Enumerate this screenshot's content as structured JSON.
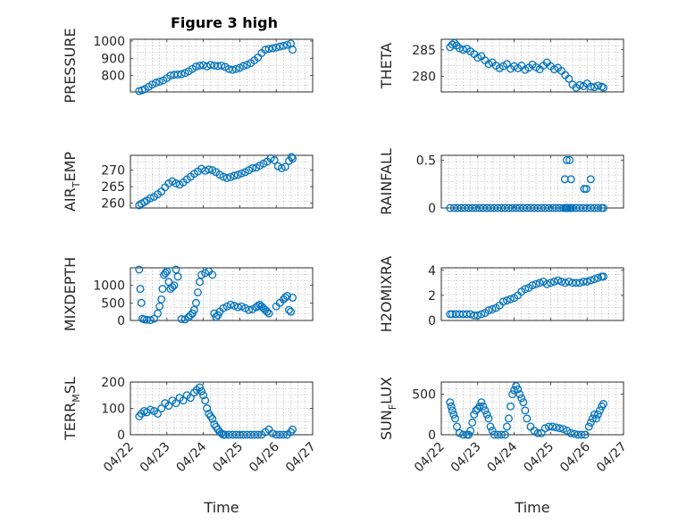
{
  "figure": {
    "title": "Figure 3 high",
    "marker_color": "#0072BD"
  },
  "chart_data": [
    {
      "type": "scatter",
      "id": "pressure",
      "ylabel": "PRESSURE",
      "xlabel": "",
      "xlim": [
        0,
        5
      ],
      "ylim": [
        705,
        1010
      ],
      "yticks": [
        800,
        900,
        1000
      ],
      "ytick_labels": [
        "800",
        "900",
        "1000"
      ],
      "xticks": [
        0,
        1,
        2,
        3,
        4,
        5
      ],
      "xtick_labels": [],
      "grid": true,
      "x": [
        0.24,
        0.32,
        0.4,
        0.5,
        0.6,
        0.7,
        0.8,
        0.9,
        1.0,
        1.1,
        1.2,
        1.3,
        1.4,
        1.5,
        1.6,
        1.7,
        1.8,
        1.9,
        2.0,
        2.1,
        2.2,
        2.3,
        2.4,
        2.5,
        2.6,
        2.7,
        2.8,
        2.9,
        3.0,
        3.1,
        3.2,
        3.3,
        3.4,
        3.5,
        3.6,
        3.7,
        3.8,
        3.9,
        4.0,
        4.1,
        4.2,
        4.3,
        4.4,
        4.45
      ],
      "y": [
        710,
        715,
        722,
        735,
        748,
        758,
        765,
        772,
        785,
        800,
        805,
        806,
        808,
        815,
        825,
        838,
        852,
        858,
        860,
        853,
        862,
        858,
        855,
        858,
        850,
        838,
        833,
        838,
        845,
        855,
        862,
        872,
        888,
        905,
        930,
        950,
        955,
        958,
        962,
        968,
        972,
        978,
        985,
        950
      ]
    },
    {
      "type": "scatter",
      "id": "theta",
      "ylabel": "THETA",
      "xlabel": "",
      "xlim": [
        0,
        5
      ],
      "ylim": [
        277,
        287
      ],
      "yticks": [
        280,
        285
      ],
      "ytick_labels": [
        "280",
        "285"
      ],
      "xticks": [
        0,
        1,
        2,
        3,
        4,
        5
      ],
      "xtick_labels": [],
      "grid": true,
      "x": [
        0.24,
        0.3,
        0.36,
        0.42,
        0.5,
        0.6,
        0.7,
        0.8,
        0.9,
        1.0,
        1.1,
        1.2,
        1.3,
        1.4,
        1.5,
        1.6,
        1.7,
        1.8,
        1.9,
        2.0,
        2.1,
        2.2,
        2.3,
        2.4,
        2.5,
        2.6,
        2.7,
        2.8,
        2.9,
        3.0,
        3.1,
        3.2,
        3.3,
        3.4,
        3.5,
        3.6,
        3.7,
        3.8,
        3.9,
        4.0,
        4.1,
        4.2,
        4.3,
        4.4,
        4.45
      ],
      "y": [
        285.5,
        286.0,
        286.3,
        285.8,
        285.3,
        285.0,
        285.2,
        284.7,
        284.2,
        283.5,
        283.8,
        283.0,
        282.3,
        282.6,
        282.0,
        281.5,
        281.9,
        282.3,
        281.4,
        281.9,
        281.5,
        282.0,
        281.2,
        281.6,
        282.2,
        281.7,
        281.3,
        282.0,
        282.6,
        281.9,
        281.3,
        281.6,
        281.0,
        280.2,
        279.5,
        278.4,
        277.8,
        278.3,
        278.1,
        278.6,
        278.0,
        277.9,
        278.2,
        278.0,
        277.8
      ]
    },
    {
      "type": "scatter",
      "id": "air-temp",
      "ylabel": "AIR_TEMP",
      "ylabel_main": "AIR",
      "ylabel_sub": "T",
      "ylabel_rest": "EMP",
      "xlabel": "",
      "xlim": [
        0,
        5
      ],
      "ylim": [
        258.5,
        274.5
      ],
      "yticks": [
        260,
        265,
        270
      ],
      "ytick_labels": [
        "260",
        "265",
        "270"
      ],
      "xticks": [
        0,
        1,
        2,
        3,
        4,
        5
      ],
      "xtick_labels": [],
      "grid": true,
      "x": [
        0.24,
        0.3,
        0.38,
        0.45,
        0.55,
        0.65,
        0.75,
        0.85,
        0.95,
        1.05,
        1.15,
        1.25,
        1.35,
        1.45,
        1.55,
        1.65,
        1.75,
        1.85,
        1.95,
        2.05,
        2.15,
        2.25,
        2.35,
        2.45,
        2.55,
        2.65,
        2.75,
        2.85,
        2.95,
        3.05,
        3.15,
        3.25,
        3.35,
        3.45,
        3.55,
        3.65,
        3.75,
        3.85,
        3.95,
        4.05,
        4.15,
        4.25,
        4.35,
        4.42,
        4.45
      ],
      "y": [
        259.3,
        259.8,
        260.3,
        260.8,
        261.5,
        261.9,
        262.7,
        263.5,
        264.8,
        266.0,
        266.6,
        266.0,
        265.6,
        266.3,
        267.2,
        268.0,
        268.9,
        269.6,
        270.4,
        269.8,
        270.2,
        270.0,
        269.4,
        268.6,
        268.0,
        267.6,
        267.9,
        268.3,
        268.6,
        269.0,
        269.4,
        270.0,
        270.6,
        270.8,
        271.4,
        272.0,
        272.6,
        273.6,
        273.0,
        271.2,
        270.6,
        271.0,
        272.8,
        274.0,
        273.5
      ]
    },
    {
      "type": "scatter",
      "id": "rainfall",
      "ylabel": "RAINFALL",
      "xlabel": "",
      "xlim": [
        0,
        5
      ],
      "ylim": [
        0,
        0.55
      ],
      "yticks": [
        0,
        0.5
      ],
      "ytick_labels": [
        "0",
        "0.5"
      ],
      "xticks": [
        0,
        1,
        2,
        3,
        4,
        5
      ],
      "xtick_labels": [],
      "grid": true,
      "x": [
        0.24,
        0.35,
        0.45,
        0.55,
        0.65,
        0.75,
        0.85,
        0.95,
        1.05,
        1.15,
        1.25,
        1.35,
        1.45,
        1.55,
        1.65,
        1.75,
        1.85,
        1.95,
        2.05,
        2.15,
        2.25,
        2.35,
        2.45,
        2.55,
        2.65,
        2.75,
        2.85,
        2.95,
        3.05,
        3.15,
        3.25,
        3.35,
        3.4,
        3.43,
        3.46,
        3.5,
        3.55,
        3.6,
        3.7,
        3.8,
        3.9,
        4.0,
        4.1,
        4.2,
        4.3,
        4.4,
        4.45,
        3.39,
        3.44,
        3.52,
        3.56,
        3.92,
        3.98,
        4.1
      ],
      "y": [
        0,
        0,
        0,
        0,
        0,
        0,
        0,
        0,
        0,
        0,
        0,
        0,
        0,
        0,
        0,
        0,
        0,
        0,
        0,
        0,
        0,
        0,
        0,
        0,
        0,
        0,
        0,
        0,
        0,
        0,
        0,
        0,
        0,
        0,
        0,
        0,
        0,
        0,
        0,
        0,
        0,
        0,
        0,
        0,
        0,
        0,
        0,
        0.3,
        0.5,
        0.5,
        0.3,
        0.2,
        0.2,
        0.3
      ]
    },
    {
      "type": "scatter",
      "id": "mixdepth",
      "ylabel": "MIXDEPTH",
      "xlabel": "",
      "xlim": [
        0,
        5
      ],
      "ylim": [
        0,
        1500
      ],
      "yticks": [
        0,
        500,
        1000
      ],
      "ytick_labels": [
        "0",
        "500",
        "1000"
      ],
      "xticks": [
        0,
        1,
        2,
        3,
        4,
        5
      ],
      "xtick_labels": [],
      "grid": true,
      "x": [
        0.24,
        0.27,
        0.3,
        0.33,
        0.38,
        0.45,
        0.55,
        0.65,
        0.75,
        0.8,
        0.85,
        0.88,
        0.92,
        0.96,
        1.0,
        1.05,
        1.1,
        1.15,
        1.2,
        1.25,
        1.3,
        1.4,
        1.5,
        1.6,
        1.65,
        1.7,
        1.75,
        1.8,
        1.85,
        1.9,
        1.95,
        2.05,
        2.15,
        2.25,
        2.3,
        2.35,
        2.4,
        2.45,
        2.55,
        2.65,
        2.75,
        2.85,
        2.95,
        3.05,
        3.15,
        3.25,
        3.35,
        3.45,
        3.5,
        3.55,
        3.6,
        3.65,
        3.7,
        3.75,
        3.8,
        4.0,
        4.1,
        4.2,
        4.25,
        4.3,
        4.35,
        4.4,
        4.45
      ],
      "y": [
        1450,
        900,
        500,
        50,
        30,
        20,
        10,
        50,
        200,
        400,
        600,
        900,
        1300,
        1350,
        1400,
        1100,
        900,
        950,
        1000,
        1450,
        1250,
        40,
        30,
        100,
        150,
        200,
        300,
        500,
        800,
        1100,
        1300,
        1350,
        1400,
        1300,
        200,
        100,
        150,
        250,
        350,
        400,
        450,
        420,
        380,
        400,
        350,
        300,
        320,
        380,
        420,
        450,
        400,
        350,
        300,
        250,
        200,
        400,
        500,
        600,
        650,
        700,
        300,
        250,
        650
      ]
    },
    {
      "type": "scatter",
      "id": "h2omixra",
      "ylabel": "H2OMIXRA",
      "xlabel": "",
      "xlim": [
        0,
        5
      ],
      "ylim": [
        0,
        4.2
      ],
      "yticks": [
        0,
        2,
        4
      ],
      "ytick_labels": [
        "0",
        "2",
        "4"
      ],
      "xticks": [
        0,
        1,
        2,
        3,
        4,
        5
      ],
      "xtick_labels": [],
      "grid": true,
      "x": [
        0.24,
        0.3,
        0.4,
        0.5,
        0.6,
        0.7,
        0.8,
        0.9,
        1.0,
        1.1,
        1.2,
        1.3,
        1.4,
        1.5,
        1.6,
        1.7,
        1.8,
        1.9,
        2.0,
        2.1,
        2.2,
        2.3,
        2.4,
        2.5,
        2.6,
        2.7,
        2.8,
        2.9,
        3.0,
        3.1,
        3.2,
        3.3,
        3.4,
        3.5,
        3.6,
        3.7,
        3.8,
        3.9,
        4.0,
        4.1,
        4.2,
        4.3,
        4.4,
        4.45
      ],
      "y": [
        0.5,
        0.5,
        0.5,
        0.5,
        0.5,
        0.5,
        0.5,
        0.4,
        0.4,
        0.5,
        0.6,
        0.8,
        0.9,
        1.0,
        1.2,
        1.5,
        1.6,
        1.7,
        1.8,
        2.0,
        2.3,
        2.5,
        2.6,
        2.8,
        2.9,
        3.0,
        3.1,
        2.9,
        3.0,
        3.1,
        3.2,
        3.1,
        3.0,
        3.1,
        3.0,
        3.0,
        3.0,
        3.1,
        3.1,
        3.2,
        3.3,
        3.4,
        3.5,
        3.5
      ]
    },
    {
      "type": "scatter",
      "id": "terr-msl",
      "ylabel": "TERR_MSL",
      "ylabel_main": "TERR",
      "ylabel_sub": "M",
      "ylabel_rest": "SL",
      "xlabel": "Time",
      "xlim": [
        0,
        5
      ],
      "ylim": [
        0,
        200
      ],
      "yticks": [
        0,
        100,
        200
      ],
      "ytick_labels": [
        "0",
        "100",
        "200"
      ],
      "xticks": [
        0,
        1,
        2,
        3,
        4,
        5
      ],
      "xtick_labels": [
        "04/22",
        "04/23",
        "04/24",
        "04/25",
        "04/26",
        "04/27"
      ],
      "grid": true,
      "x": [
        0.24,
        0.3,
        0.38,
        0.45,
        0.55,
        0.65,
        0.75,
        0.85,
        0.95,
        1.05,
        1.15,
        1.25,
        1.35,
        1.45,
        1.55,
        1.65,
        1.75,
        1.82,
        1.9,
        1.95,
        2.0,
        2.05,
        2.1,
        2.15,
        2.2,
        2.25,
        2.3,
        2.35,
        2.4,
        2.45,
        2.5,
        2.55,
        2.6,
        2.7,
        2.8,
        2.9,
        3.0,
        3.1,
        3.2,
        3.3,
        3.4,
        3.5,
        3.6,
        3.7,
        3.8,
        3.9,
        4.0,
        4.1,
        4.2,
        4.3,
        4.4,
        4.45
      ],
      "y": [
        70,
        80,
        90,
        85,
        95,
        90,
        80,
        100,
        120,
        110,
        130,
        120,
        140,
        130,
        150,
        140,
        160,
        170,
        180,
        165,
        150,
        130,
        100,
        80,
        70,
        60,
        40,
        30,
        20,
        10,
        5,
        0,
        0,
        0,
        0,
        0,
        0,
        0,
        0,
        0,
        0,
        0,
        0,
        10,
        20,
        5,
        0,
        0,
        0,
        0,
        10,
        20
      ]
    },
    {
      "type": "scatter",
      "id": "sun-flux",
      "ylabel": "SUN_FLUX",
      "ylabel_main": "SUN",
      "ylabel_sub": "F",
      "ylabel_rest": "LUX",
      "xlabel": "Time",
      "xlim": [
        0,
        5
      ],
      "ylim": [
        0,
        650
      ],
      "yticks": [
        0,
        500
      ],
      "ytick_labels": [
        "0",
        "500"
      ],
      "xticks": [
        0,
        1,
        2,
        3,
        4,
        5
      ],
      "xtick_labels": [
        "04/22",
        "04/23",
        "04/24",
        "04/25",
        "04/26",
        "04/27"
      ],
      "grid": true,
      "x": [
        0.24,
        0.27,
        0.3,
        0.34,
        0.38,
        0.43,
        0.5,
        0.6,
        0.7,
        0.75,
        0.8,
        0.85,
        0.9,
        0.95,
        1.0,
        1.05,
        1.1,
        1.15,
        1.2,
        1.25,
        1.3,
        1.35,
        1.4,
        1.45,
        1.55,
        1.65,
        1.75,
        1.8,
        1.85,
        1.9,
        1.95,
        2.0,
        2.05,
        2.1,
        2.15,
        2.2,
        2.25,
        2.3,
        2.35,
        2.45,
        2.55,
        2.65,
        2.75,
        2.85,
        2.95,
        3.05,
        3.15,
        3.25,
        3.35,
        3.45,
        3.55,
        3.65,
        3.75,
        3.85,
        3.95,
        4.05,
        4.1,
        4.15,
        4.2,
        4.25,
        4.3,
        4.35,
        4.4,
        4.45
      ],
      "y": [
        400,
        350,
        300,
        250,
        200,
        100,
        20,
        0,
        0,
        0,
        50,
        150,
        250,
        300,
        320,
        350,
        400,
        350,
        300,
        250,
        200,
        100,
        50,
        0,
        0,
        0,
        0,
        100,
        200,
        350,
        500,
        550,
        600,
        560,
        500,
        450,
        400,
        300,
        200,
        100,
        50,
        20,
        20,
        80,
        100,
        100,
        90,
        80,
        70,
        50,
        20,
        10,
        0,
        0,
        0,
        100,
        150,
        200,
        250,
        200,
        250,
        300,
        350,
        380
      ]
    }
  ]
}
